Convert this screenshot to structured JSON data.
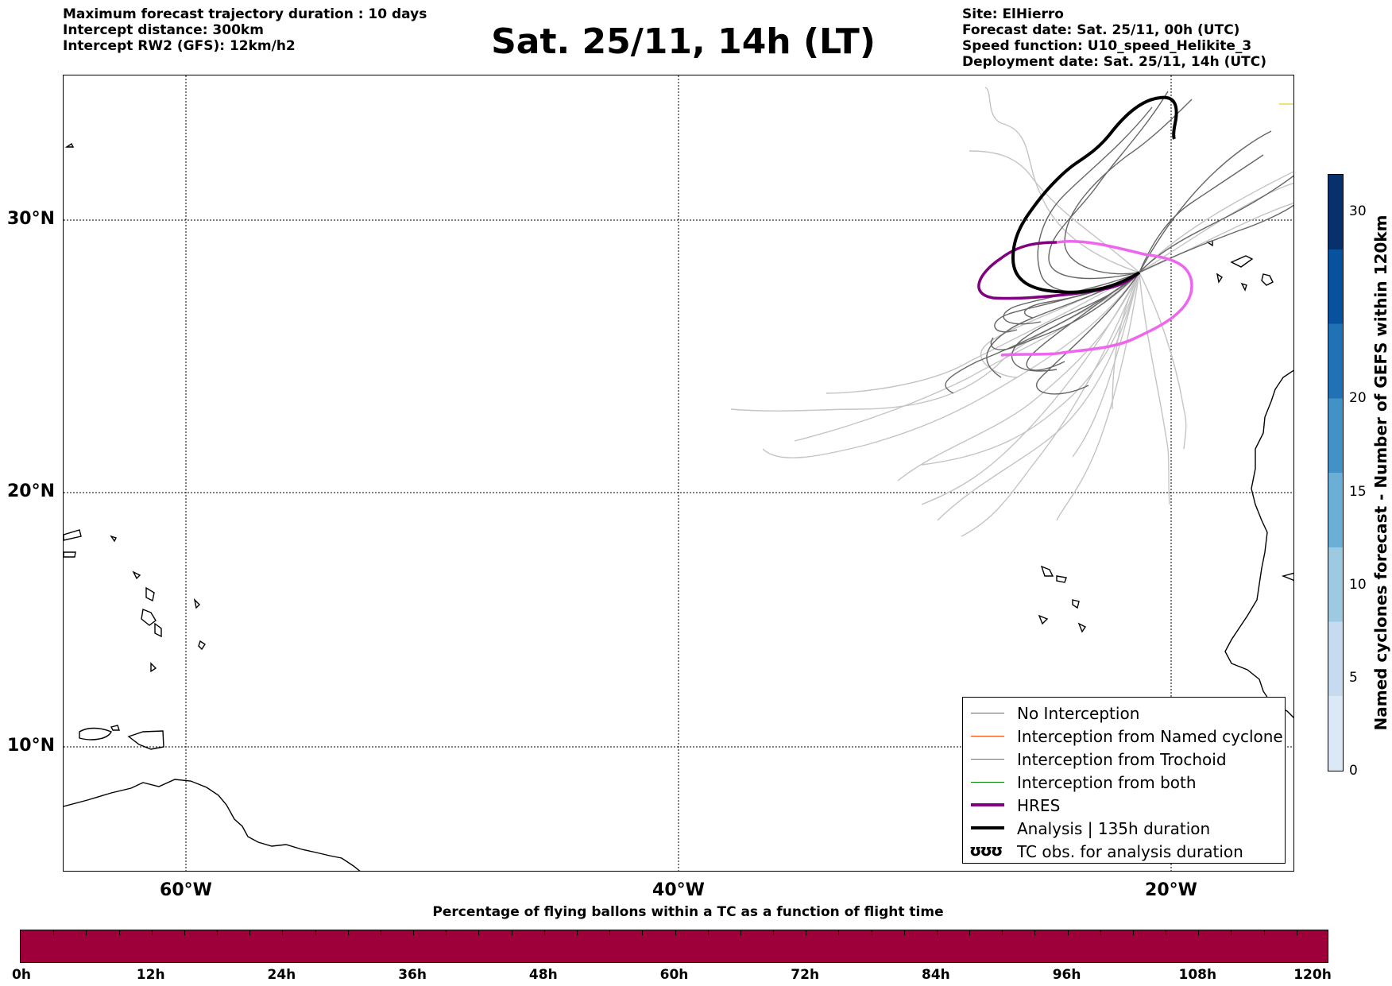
{
  "header_left": [
    "Maximum forecast trajectory duration : 10 days",
    "Intercept distance: 300km",
    "Intercept RW2 (GFS):  12km/h2"
  ],
  "title": "Sat. 25/11, 14h (LT)",
  "header_right": [
    "Site: ElHierro",
    "Forecast date: Sat. 25/11, 00h (UTC)",
    "Speed function: U10_speed_Helikite_3",
    "Deployment date: Sat. 25/11, 14h (UTC)"
  ],
  "map": {
    "lat_labels": [
      "30°N",
      "20°N",
      "10°N"
    ],
    "lon_labels": [
      "60°W",
      "40°W",
      "20°W"
    ],
    "gridlines": true
  },
  "legend": {
    "items": [
      {
        "label": "No Interception",
        "color": "#666666"
      },
      {
        "label": "Interception from Named cyclone",
        "color": "#ff4500"
      },
      {
        "label": "Interception from Trochoid",
        "color": "#808000"
      },
      {
        "label": "Interception from both",
        "color": "#008000"
      },
      {
        "label": "HRES",
        "color": "#800080"
      },
      {
        "label": "Analysis | 135h duration",
        "color": "#000000"
      },
      {
        "label": "TC obs. for analysis duration",
        "glyph": "ʊʊʊ"
      }
    ]
  },
  "colorbar_vertical": {
    "label": "Named cyclones forecast - Number of GEFS within 120km",
    "ticks": [
      "0",
      "5",
      "10",
      "15",
      "20",
      "30"
    ],
    "colors": [
      "#dbe9f6",
      "#c6dbef",
      "#9ecae1",
      "#6baed6",
      "#4292c6",
      "#2171b5",
      "#08519c",
      "#08306b"
    ]
  },
  "colorbar_horizontal": {
    "title": "Percentage of flying ballons within a TC as a function of flight time",
    "ticks": [
      "0h",
      "12h",
      "24h",
      "36h",
      "48h",
      "60h",
      "72h",
      "84h",
      "96h",
      "108h",
      "120h"
    ],
    "color": "#9e003a"
  }
}
